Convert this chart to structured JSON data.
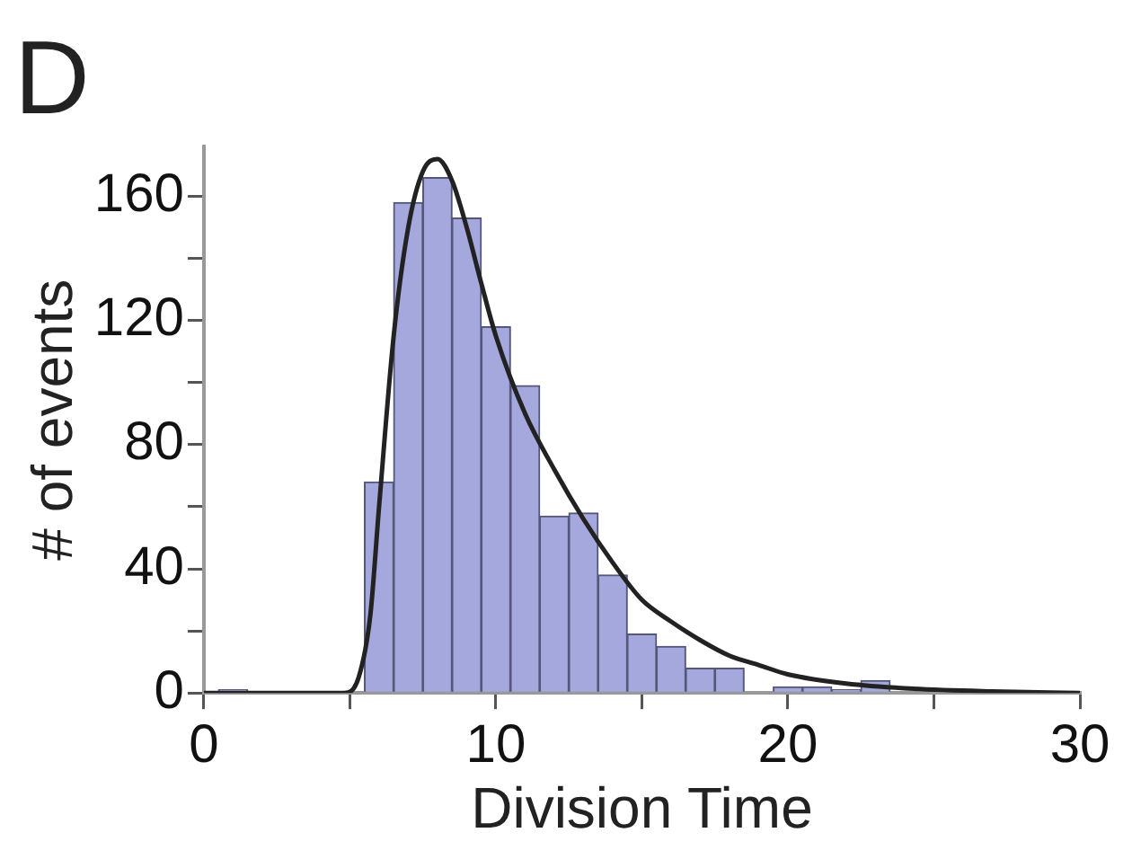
{
  "chart_data": {
    "type": "histogram",
    "title": "D",
    "xlabel": "Division Time",
    "ylabel": "# of events",
    "bins": [
      0.5,
      1.5,
      2.5,
      3.5,
      4.5,
      5.5,
      6.5,
      7.5,
      8.5,
      9.5,
      10.5,
      11.5,
      12.5,
      13.5,
      14.5,
      15.5,
      16.5,
      17.5,
      18.5,
      19.5,
      20.5,
      21.5,
      22.5,
      23.5
    ],
    "values": [
      1,
      0,
      0,
      0,
      0,
      68,
      158,
      166,
      153,
      118,
      99,
      57,
      58,
      38,
      19,
      15,
      8,
      8,
      0,
      2,
      2,
      1,
      4
    ],
    "color": "#a5a8dc",
    "series": [
      {
        "type": "line",
        "color": "#222222",
        "x": [
          0,
          4.8,
          5.3,
          5.7,
          6,
          6.5,
          7,
          7.5,
          8,
          8.5,
          9,
          9.5,
          10,
          11,
          12,
          13,
          14,
          15,
          16,
          17,
          18,
          19,
          20,
          22,
          24,
          27,
          30
        ],
        "values": [
          0,
          0,
          5,
          25,
          60,
          115,
          150,
          168,
          172,
          165,
          150,
          132,
          115,
          90,
          72,
          56,
          42,
          30,
          23,
          17,
          12,
          9,
          6,
          3,
          1.5,
          0.5,
          0
        ]
      }
    ],
    "xlim": [
      0,
      30
    ],
    "ylim": [
      0,
      176
    ],
    "xticks": [
      0,
      {
        "value": 5,
        "label": null
      },
      10,
      {
        "value": 15,
        "label": null
      },
      20,
      {
        "value": 25,
        "label": null
      },
      30
    ],
    "yticks": [
      0,
      {
        "value": 20,
        "label": null
      },
      40,
      {
        "value": 60,
        "label": null
      },
      80,
      {
        "value": 100,
        "label": null
      },
      120,
      {
        "value": 140,
        "label": null
      },
      160
    ],
    "grid": false,
    "legend": false,
    "marker": "none",
    "line_style": "solid"
  }
}
